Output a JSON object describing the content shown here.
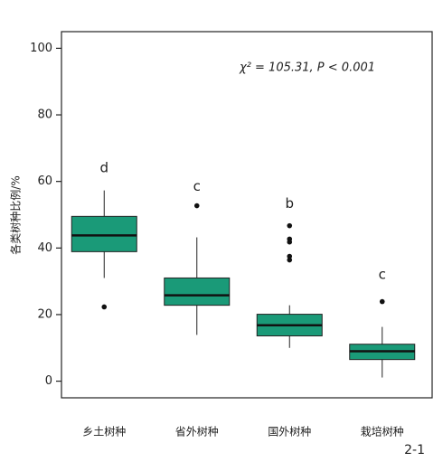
{
  "chart_data": {
    "type": "box",
    "y_label": "各类树种比例/%",
    "annotation": "χ² = 105.31, P < 0.001",
    "figure_label": "2-1",
    "categories": [
      "乡土树种",
      "省外树种",
      "国外树种",
      "栽培树种"
    ],
    "color": "#1a9a78",
    "boxes": [
      {
        "min": 31,
        "q1": 38.9,
        "median": 43.8,
        "q3": 49.5,
        "max": 57.3,
        "outliers": [
          22.3
        ],
        "group": "d",
        "group_y": 64
      },
      {
        "min": 13.9,
        "q1": 22.8,
        "median": 25.8,
        "q3": 31,
        "max": 43.2,
        "outliers": [
          52.7
        ],
        "group": "c",
        "group_y": 58.4
      },
      {
        "min": 10,
        "q1": 13.6,
        "median": 16.8,
        "q3": 20.1,
        "max": 22.8,
        "outliers": [
          46.7,
          42.7,
          41.8,
          37.5,
          36.4
        ],
        "group": "b",
        "group_y": 53.3
      },
      {
        "min": 1.1,
        "q1": 6.5,
        "median": 9,
        "q3": 11.1,
        "max": 16.3,
        "outliers": [
          23.9
        ],
        "group": "c",
        "group_y": 32
      }
    ],
    "ylim": [
      -5,
      105
    ],
    "yticks": [
      0,
      20,
      40,
      60,
      80,
      100
    ]
  }
}
